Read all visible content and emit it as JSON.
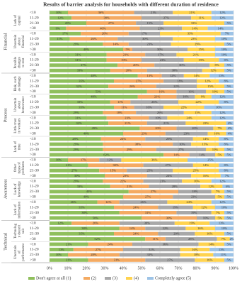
{
  "chart_data": {
    "type": "stacked-barh",
    "title": "Results of barrier analysis for households with different duration of residence",
    "categories": [
      "<10",
      "11-20",
      "21-30",
      ">30",
      "<10",
      "11-20",
      "21-30",
      ">30",
      "<10",
      "11-20",
      "21-30",
      ">30",
      "<10",
      "11-20",
      "21-30",
      ">30",
      "<10",
      "11-20",
      "21-30",
      ">30",
      "<10",
      "11-20",
      "21-30",
      ">30",
      "<10",
      "11-20",
      "21-30",
      ">30",
      "<10",
      "11-20",
      "21-30",
      ">30",
      "<10",
      "11-20",
      "21-30",
      ">30",
      "<10",
      "11-20",
      "21-30",
      ">30",
      "<10",
      "11-20",
      "21-30",
      ">30",
      "<10",
      "11-20",
      "21-30",
      ">30"
    ],
    "groups": [
      {
        "name": "Financial",
        "barriers": [
          [
            "Lack of",
            "capital"
          ],
          [
            "Uncertain",
            "about",
            "financial"
          ],
          [
            "Possible",
            "changes",
            "to rent"
          ]
        ]
      },
      {
        "name": "Process",
        "barriers": [
          [
            "Risk, such",
            "as damage"
          ],
          [
            "Uncertain",
            "about",
            "homeowner"
          ],
          [
            "Little trust",
            "in workers"
          ],
          [
            "Lack of",
            "time"
          ]
        ]
      },
      {
        "name": "Awareness",
        "barriers": [
          [
            "Other",
            "types of",
            "problems"
          ],
          [
            "Lack of",
            "knowledge"
          ],
          [
            "Lack of",
            "information"
          ]
        ]
      },
      {
        "name": "Technical",
        "barriers": [
          [
            "Technolog",
            "y doesn't",
            "suit"
          ],
          [
            "Uncertain",
            "of",
            "performance"
          ]
        ]
      }
    ],
    "series": [
      {
        "name": "Don't agree at all (1)",
        "color": "#8fbf5c",
        "values": [
          10,
          12,
          20,
          9,
          17,
          11,
          29,
          40,
          31,
          31,
          37,
          33,
          48,
          35,
          32,
          53,
          48,
          33,
          35,
          29,
          31,
          32,
          49,
          40,
          28,
          29,
          29,
          62,
          10,
          21,
          27,
          30,
          29,
          33,
          43,
          40,
          26,
          35,
          38,
          50,
          12,
          38,
          35,
          52,
          21,
          13,
          10,
          21
        ],
        "value_labels": [
          "10%",
          "12%",
          "20%",
          "9%",
          "17%",
          "11%",
          "29%",
          "40%",
          "31%",
          "31%",
          "37%",
          "33%",
          "48%",
          "35%",
          "32%",
          "53%",
          "48%",
          "33%",
          "35%",
          "29%",
          "31%",
          "32%",
          "49%",
          "40%",
          "28%",
          "29%",
          "29%",
          "62%",
          "10%",
          "21%",
          "27%",
          "30%",
          "29%",
          "33%",
          "43%",
          "40%",
          "26%",
          "35%",
          "38%",
          "50%",
          "12%",
          "38%",
          "35%",
          "52%",
          "21%",
          "13%",
          "10%",
          "21%"
        ]
      },
      {
        "name": "(2)",
        "color": "#f4aa62",
        "values": [
          36,
          38,
          27,
          40,
          26,
          26,
          14,
          5,
          21,
          19,
          20,
          20,
          13,
          27,
          26,
          16,
          21,
          11,
          11,
          18,
          23,
          21,
          20,
          23,
          24,
          38,
          29,
          14,
          17,
          30,
          15,
          23,
          22,
          21,
          27,
          27,
          12,
          24,
          31,
          30,
          26,
          14,
          24,
          11,
          24,
          27,
          28,
          31
        ],
        "value_labels": [
          "36%",
          "38%",
          "27%",
          "40%",
          "26%",
          "26%",
          "14%",
          "5%",
          "21%",
          "19%",
          "20%",
          "20%",
          "13%",
          "27%",
          "26%",
          "16%",
          "21%",
          "11%",
          "11%",
          "18%",
          "23%",
          "21%",
          "20%",
          "23%",
          "24%",
          "38%",
          "29%",
          "14%",
          "17%",
          "30%",
          "15%",
          "23%",
          "22%",
          "21%",
          "27%",
          "27%",
          "12%",
          "24%",
          "31%",
          "30%",
          "26%",
          "14%",
          "24%",
          "11%",
          "24%",
          "27%",
          "28%",
          "31%"
        ]
      },
      {
        "name": "(3)",
        "color": "#a8a8a8",
        "values": [
          21,
          27,
          15,
          23,
          17,
          30,
          23,
          30,
          17,
          23,
          30,
          30,
          12,
          18,
          22,
          16,
          10,
          26,
          16,
          26,
          10,
          21,
          20,
          23,
          26,
          10,
          27,
          14,
          12,
          27,
          25,
          24,
          21,
          28,
          18,
          23,
          26,
          19,
          19,
          10,
          30,
          22,
          20,
          28,
          36,
          31,
          33,
          27
        ],
        "value_labels": [
          "21%",
          "27%",
          "15%",
          "23%",
          "17%",
          "30%",
          "23%",
          "30%",
          "17%",
          "23%",
          "30%",
          "30%",
          "12%",
          "18%",
          "22%",
          "16%",
          "10%",
          "26%",
          "16%",
          "26%",
          "10%",
          "21%",
          "20%",
          "23%",
          "26%",
          "10%",
          "27%",
          "14%",
          "12%",
          "27%",
          "25%",
          "24%",
          "21%",
          "28%",
          "18%",
          "23%",
          "26%",
          "19%",
          "19%",
          "10%",
          "30%",
          "22%",
          "20%",
          "28%",
          "36%",
          "31%",
          "33%",
          "27%"
        ]
      },
      {
        "name": "(4)",
        "color": "#ffd34f",
        "values": [
          21,
          11,
          33,
          14,
          33,
          23,
          29,
          15,
          21,
          19,
          8,
          12,
          14,
          12,
          15,
          10,
          9,
          22,
          22,
          15,
          24,
          22,
          7,
          10,
          14,
          15,
          10,
          5,
          36,
          14,
          25,
          16,
          16,
          12,
          7,
          5,
          24,
          12,
          7,
          5,
          19,
          16,
          16,
          7,
          14,
          16,
          18,
          16
        ],
        "value_labels": [
          "21%",
          "11%",
          "33%",
          "14%",
          "33%",
          "23%",
          "29%",
          "15%",
          "21%",
          "19%",
          "8%",
          "12%",
          "14%",
          "12%",
          "15%",
          "10%",
          "9%",
          "22%",
          "22%",
          "15%",
          "24%",
          "22%",
          "7%",
          "10%",
          "14%",
          "15%",
          "10%",
          "5%",
          "36%",
          "14%",
          "25%",
          "16%",
          "16%",
          "12%",
          "7%",
          "5%",
          "24%",
          "12%",
          "7%",
          "5%",
          "19%",
          "16%",
          "16%",
          "7%",
          "14%",
          "16%",
          "18%",
          "16%"
        ]
      },
      {
        "name": "Completely agree (5)",
        "color": "#9dc3e6",
        "values": [
          12,
          12,
          5,
          14,
          7,
          10,
          5,
          10,
          10,
          8,
          5,
          5,
          13,
          8,
          5,
          5,
          12,
          8,
          16,
          12,
          12,
          4,
          4,
          4,
          8,
          8,
          5,
          5,
          25,
          8,
          8,
          7,
          12,
          6,
          5,
          5,
          12,
          10,
          5,
          5,
          13,
          10,
          5,
          2,
          5,
          13,
          11,
          5
        ],
        "value_labels": [
          "12%",
          "12%",
          "5%",
          "14%",
          "7%",
          "10%",
          "5%",
          "10%",
          "10%",
          "8%",
          "5%",
          "5%",
          "13%",
          "8%",
          "5%",
          "5%",
          "12%",
          "8%",
          "16%",
          "12%",
          "12%",
          "4%",
          "4%",
          "4%",
          "8%",
          "8%",
          "5%",
          "5%",
          "25%",
          "8%",
          "8%",
          "7%",
          "12%",
          "6%",
          "5%",
          "5%",
          "12%",
          "10%",
          "5%",
          "5%",
          "13%",
          "10%",
          "5%",
          "2%",
          "5%",
          "13%",
          "11%",
          "5%"
        ]
      }
    ],
    "xlim": [
      0,
      100
    ],
    "xticks": [
      {
        "value": 0,
        "label": "0%"
      },
      {
        "value": 10,
        "label": "10%"
      },
      {
        "value": 20,
        "label": "20%"
      },
      {
        "value": 30,
        "label": "30%"
      },
      {
        "value": 40,
        "label": "40%"
      },
      {
        "value": 50,
        "label": "50%"
      },
      {
        "value": 60,
        "label": "60%"
      },
      {
        "value": 70,
        "label": "70%"
      },
      {
        "value": 80,
        "label": "80%"
      },
      {
        "value": 90,
        "label": "90%"
      },
      {
        "value": 100,
        "label": "100%"
      }
    ],
    "grid": true
  }
}
